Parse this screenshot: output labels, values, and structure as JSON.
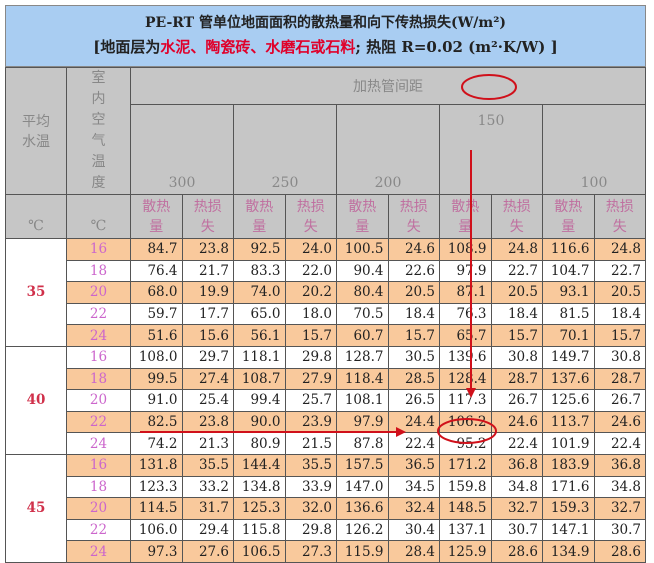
{
  "title": {
    "line1": "PE-RT 管单位地面面积的散热量和向下传热损失(W/m²)",
    "line2_prefix": "[地面层为",
    "line2_red": "水泥、陶瓷砖、水磨石或石料",
    "line2_suffix": "; 热阻 R=0.02 (m²·K/W) ]"
  },
  "header": {
    "mean_water_temp": "平均水温",
    "indoor_air_temp": "室内空气温度",
    "pipe_spacing": "加热管间距",
    "spacings": [
      "300",
      "250",
      "200",
      "150",
      "100"
    ],
    "heat_output": "散热量",
    "heat_loss": "热损失",
    "unit": "℃"
  },
  "groups": [
    {
      "water_temp": "35",
      "rows": [
        {
          "t": "16",
          "v": [
            "84.7",
            "23.8",
            "92.5",
            "24.0",
            "100.5",
            "24.6",
            "108.9",
            "24.8",
            "116.6",
            "24.8"
          ]
        },
        {
          "t": "18",
          "v": [
            "76.4",
            "21.7",
            "83.3",
            "22.0",
            "90.4",
            "22.6",
            "97.9",
            "22.7",
            "104.7",
            "22.7"
          ]
        },
        {
          "t": "20",
          "v": [
            "68.0",
            "19.9",
            "74.0",
            "20.2",
            "80.4",
            "20.5",
            "87.1",
            "20.5",
            "93.1",
            "20.5"
          ]
        },
        {
          "t": "22",
          "v": [
            "59.7",
            "17.7",
            "65.0",
            "18.0",
            "70.5",
            "18.4",
            "76.3",
            "18.4",
            "81.5",
            "18.4"
          ]
        },
        {
          "t": "24",
          "v": [
            "51.6",
            "15.6",
            "56.1",
            "15.7",
            "60.7",
            "15.7",
            "65.7",
            "15.7",
            "70.1",
            "15.7"
          ]
        }
      ]
    },
    {
      "water_temp": "40",
      "rows": [
        {
          "t": "16",
          "v": [
            "108.0",
            "29.7",
            "118.1",
            "29.8",
            "128.7",
            "30.5",
            "139.6",
            "30.8",
            "149.7",
            "30.8"
          ]
        },
        {
          "t": "18",
          "v": [
            "99.5",
            "27.4",
            "108.7",
            "27.9",
            "118.4",
            "28.5",
            "128.4",
            "28.7",
            "137.6",
            "28.7"
          ]
        },
        {
          "t": "20",
          "v": [
            "91.0",
            "25.4",
            "99.4",
            "25.7",
            "108.1",
            "26.5",
            "117.3",
            "26.7",
            "125.6",
            "26.7"
          ]
        },
        {
          "t": "22",
          "v": [
            "82.5",
            "23.8",
            "90.0",
            "23.9",
            "97.9",
            "24.4",
            "106.2",
            "24.6",
            "113.7",
            "24.6"
          ]
        },
        {
          "t": "24",
          "v": [
            "74.2",
            "21.3",
            "80.9",
            "21.5",
            "87.8",
            "22.4",
            "95.2",
            "22.4",
            "101.9",
            "22.4"
          ]
        }
      ]
    },
    {
      "water_temp": "45",
      "rows": [
        {
          "t": "16",
          "v": [
            "131.8",
            "35.5",
            "144.4",
            "35.5",
            "157.5",
            "36.5",
            "171.2",
            "36.8",
            "183.9",
            "36.8"
          ]
        },
        {
          "t": "18",
          "v": [
            "123.3",
            "33.2",
            "134.8",
            "33.9",
            "147.0",
            "34.5",
            "159.8",
            "34.8",
            "171.6",
            "34.8"
          ]
        },
        {
          "t": "20",
          "v": [
            "114.5",
            "31.7",
            "125.3",
            "32.0",
            "136.6",
            "32.4",
            "148.5",
            "32.7",
            "159.3",
            "32.7"
          ]
        },
        {
          "t": "22",
          "v": [
            "106.0",
            "29.4",
            "115.8",
            "29.8",
            "126.2",
            "30.4",
            "137.1",
            "30.7",
            "147.1",
            "30.7"
          ]
        },
        {
          "t": "24",
          "v": [
            "97.3",
            "27.6",
            "106.5",
            "27.3",
            "115.9",
            "28.4",
            "125.9",
            "28.6",
            "134.9",
            "28.6"
          ]
        }
      ]
    }
  ],
  "colors": {
    "title_bg": "#a9cdf2",
    "header_bg": "#c6c6c6",
    "row_orange": "#f9c99c",
    "annotation": "#d0101a"
  }
}
